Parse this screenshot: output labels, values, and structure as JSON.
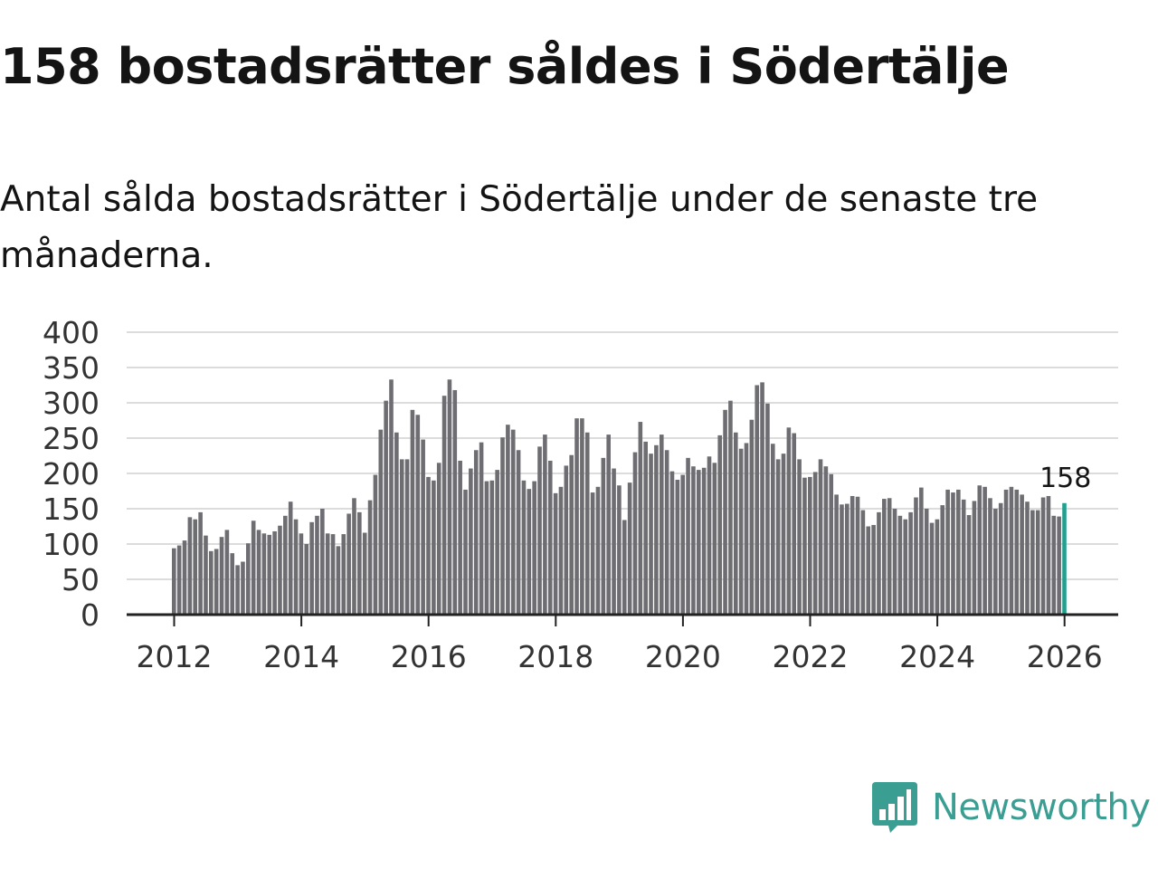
{
  "title": "158 bostadsrätter såldes i Södertälje",
  "subtitle": "Antal sålda bostadsrätter i Södertälje under de senaste tre månaderna.",
  "brand": "Newsworthy",
  "colors": {
    "bar": "#6e6d72",
    "highlight": "#22a08f",
    "grid": "#dcdcdc",
    "axis": "#222222",
    "brand": "#3a9e92"
  },
  "chart_data": {
    "type": "bar",
    "title": "158 bostadsrätter såldes i Södertälje",
    "xlabel": "",
    "ylabel": "",
    "ylim": [
      0,
      400
    ],
    "yticks": [
      0,
      50,
      100,
      150,
      200,
      250,
      300,
      350,
      400
    ],
    "xticks": [
      "2012",
      "2014",
      "2016",
      "2018",
      "2020",
      "2022",
      "2024",
      "2026"
    ],
    "start": "2012-01",
    "frequency": "monthly",
    "highlight_label": "158",
    "values": [
      94,
      98,
      105,
      138,
      135,
      145,
      112,
      90,
      93,
      110,
      120,
      87,
      70,
      75,
      101,
      133,
      120,
      115,
      113,
      118,
      126,
      140,
      160,
      135,
      115,
      100,
      131,
      140,
      150,
      115,
      114,
      97,
      114,
      143,
      165,
      145,
      116,
      162,
      198,
      262,
      303,
      333,
      258,
      220,
      220,
      290,
      283,
      248,
      195,
      190,
      215,
      310,
      333,
      318,
      218,
      177,
      207,
      233,
      244,
      189,
      190,
      205,
      251,
      269,
      262,
      233,
      190,
      178,
      189,
      238,
      255,
      218,
      172,
      181,
      211,
      226,
      278,
      278,
      258,
      173,
      181,
      222,
      255,
      207,
      183,
      134,
      187,
      230,
      273,
      245,
      228,
      240,
      255,
      233,
      203,
      191,
      198,
      222,
      210,
      205,
      208,
      224,
      215,
      254,
      290,
      303,
      258,
      235,
      243,
      276,
      325,
      329,
      299,
      242,
      220,
      228,
      265,
      257,
      220,
      194,
      195,
      202,
      220,
      210,
      199,
      170,
      156,
      157,
      168,
      167,
      148,
      125,
      127,
      145,
      164,
      165,
      150,
      140,
      135,
      145,
      166,
      180,
      150,
      130,
      135,
      155,
      177,
      173,
      177,
      163,
      141,
      161,
      183,
      181,
      165,
      150,
      158,
      177,
      181,
      177,
      170,
      160,
      148,
      148,
      166,
      168,
      140,
      139,
      158
    ]
  }
}
